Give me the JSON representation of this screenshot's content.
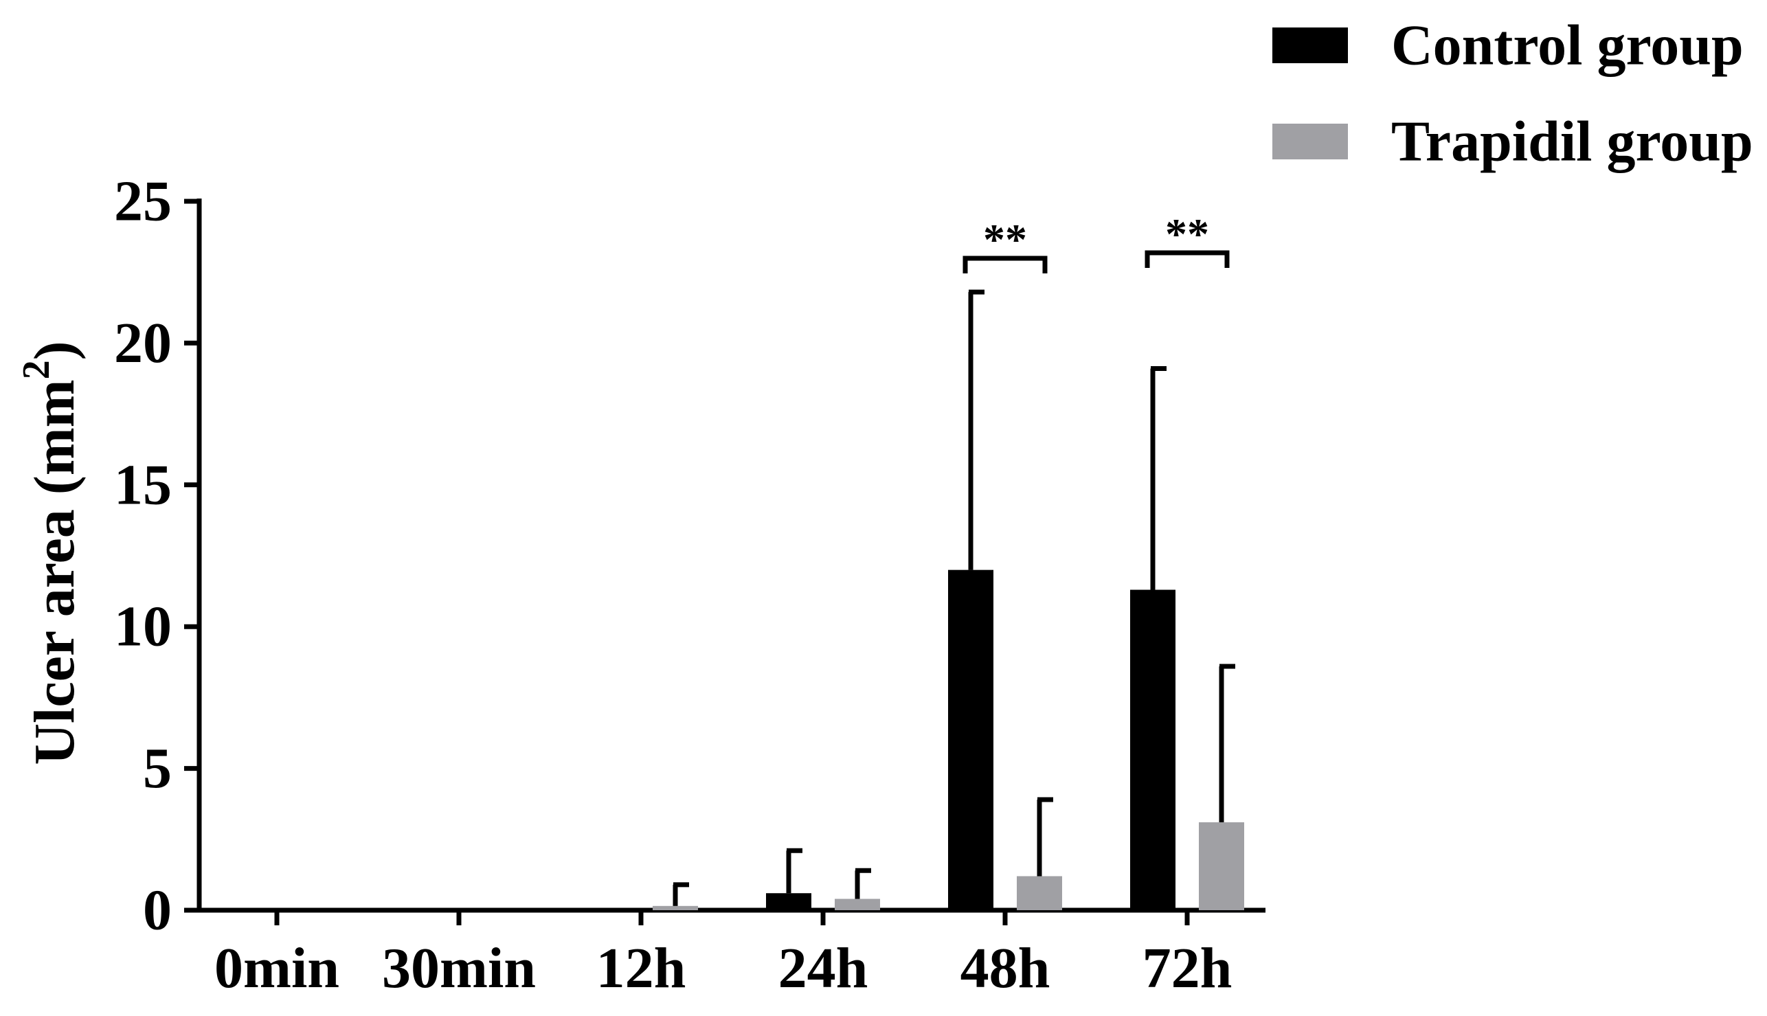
{
  "chart_data": {
    "type": "bar",
    "title": "",
    "xlabel": "",
    "ylabel": "Ulcer area (mm",
    "ylabel_sup": "2",
    "ylabel_close": ")",
    "categories": [
      "0min",
      "30min",
      "12h",
      "24h",
      "48h",
      "72h"
    ],
    "ylim": [
      0,
      25
    ],
    "yticks": [
      "0",
      "5",
      "10",
      "15",
      "20",
      "25"
    ],
    "grid": false,
    "legend_position": "top-right",
    "series": [
      {
        "name": "Control group",
        "color": "#000000",
        "values": [
          0,
          0,
          0,
          0.6,
          12.0,
          11.3
        ],
        "errors": [
          0,
          0,
          0,
          1.5,
          9.8,
          7.8
        ]
      },
      {
        "name": "Trapidil group",
        "color": "#a0a0a4",
        "values": [
          0,
          0,
          0.15,
          0.4,
          1.2,
          3.1
        ],
        "errors": [
          0,
          0,
          0.75,
          1.0,
          2.7,
          5.5
        ]
      }
    ],
    "annotations": [
      {
        "category": "48h",
        "text": "**"
      },
      {
        "category": "72h",
        "text": "**"
      }
    ]
  }
}
